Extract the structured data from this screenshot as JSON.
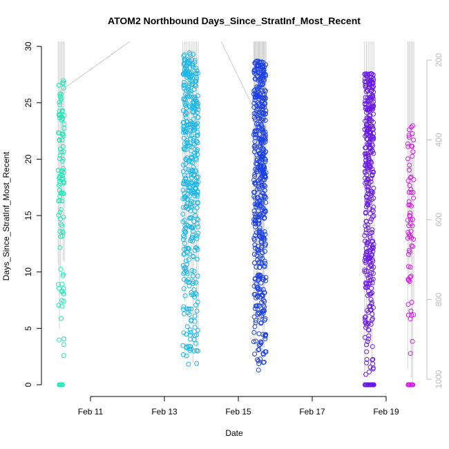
{
  "chart_data": {
    "type": "scatter",
    "title": "ATOM2 Northbound Days_Since_StratInf_Most_Recent",
    "xlabel": "Date",
    "ylabel": "Days_Since_StratInf_Most_Recent",
    "x_ticks": [
      "Feb 11",
      "Feb 13",
      "Feb 15",
      "Feb 17",
      "Feb 19"
    ],
    "x_range": [
      "Feb 9 18:00",
      "Feb 20 12:00"
    ],
    "y_ticks": [
      0,
      5,
      10,
      15,
      20,
      25,
      30
    ],
    "ylim": [
      -1,
      30.5
    ],
    "right_axis": {
      "ticks": [
        200,
        400,
        600,
        800,
        1000
      ],
      "range": [
        1060,
        150
      ],
      "reversed": true
    },
    "grid": false,
    "series": [
      {
        "x_range": [
          "Feb 10 03:00",
          "Feb 10 07:00"
        ],
        "y_min": 0,
        "y_max": 27,
        "color": "#1de9b6"
      },
      {
        "x_range": [
          "Feb 13 12:00",
          "Feb 13 22:00"
        ],
        "y_min": 1.4,
        "y_max": 29.5,
        "color": "#1ab6e8"
      },
      {
        "x_range": [
          "Feb 15 10:00",
          "Feb 15 18:00"
        ],
        "y_min": 1.2,
        "y_max": 28.7,
        "color": "#1a3fe8"
      },
      {
        "x_range": [
          "Feb 18 10:00",
          "Feb 18 16:00"
        ],
        "y_min": 0,
        "y_max": 27.6,
        "color": "#6a1ae8"
      },
      {
        "x_range": [
          "Feb 19 14:00",
          "Feb 19 18:00"
        ],
        "y_min": 0,
        "y_max": 23.6,
        "color": "#d51ae8"
      }
    ]
  }
}
